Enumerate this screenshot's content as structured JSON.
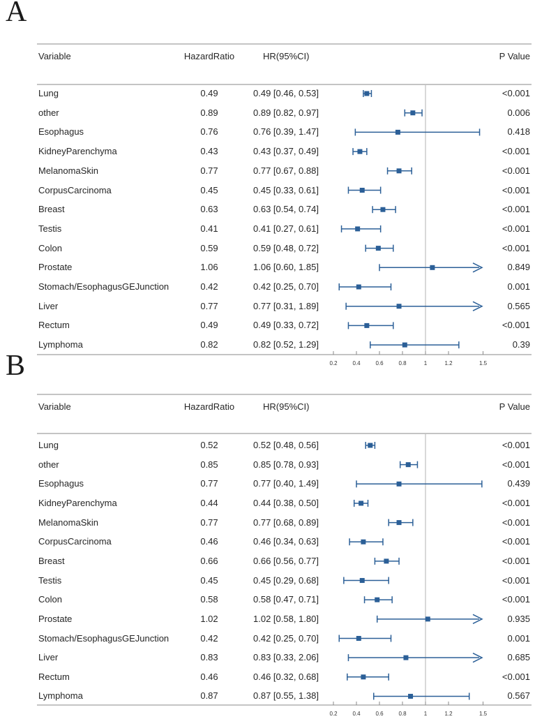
{
  "colors": {
    "marker": "#2b5f97",
    "rule": "#8a8a8a",
    "ref_line": "#b0b0b0",
    "text": "#262626",
    "tick_text": "#333333",
    "background": "#ffffff"
  },
  "chart_data": [
    {
      "type": "forest",
      "panel_label": "A",
      "columns": [
        "Variable",
        "HazardRatio",
        "HR(95%CI)",
        "P Value"
      ],
      "rows": [
        {
          "variable": "Lung",
          "hr": 0.49,
          "lower": 0.46,
          "upper": 0.53,
          "hr_label": "0.49",
          "ci_label": "0.49 [0.46, 0.53]",
          "p": "<0.001"
        },
        {
          "variable": "other",
          "hr": 0.89,
          "lower": 0.82,
          "upper": 0.97,
          "hr_label": "0.89",
          "ci_label": "0.89 [0.82, 0.97]",
          "p": "0.006"
        },
        {
          "variable": "Esophagus",
          "hr": 0.76,
          "lower": 0.39,
          "upper": 1.47,
          "hr_label": "0.76",
          "ci_label": "0.76 [0.39, 1.47]",
          "p": "0.418"
        },
        {
          "variable": "KidneyParenchyma",
          "hr": 0.43,
          "lower": 0.37,
          "upper": 0.49,
          "hr_label": "0.43",
          "ci_label": "0.43 [0.37, 0.49]",
          "p": "<0.001"
        },
        {
          "variable": "MelanomaSkin",
          "hr": 0.77,
          "lower": 0.67,
          "upper": 0.88,
          "hr_label": "0.77",
          "ci_label": "0.77 [0.67, 0.88]",
          "p": "<0.001"
        },
        {
          "variable": "CorpusCarcinoma",
          "hr": 0.45,
          "lower": 0.33,
          "upper": 0.61,
          "hr_label": "0.45",
          "ci_label": "0.45 [0.33, 0.61]",
          "p": "<0.001"
        },
        {
          "variable": "Breast",
          "hr": 0.63,
          "lower": 0.54,
          "upper": 0.74,
          "hr_label": "0.63",
          "ci_label": "0.63 [0.54, 0.74]",
          "p": "<0.001"
        },
        {
          "variable": "Testis",
          "hr": 0.41,
          "lower": 0.27,
          "upper": 0.61,
          "hr_label": "0.41",
          "ci_label": "0.41 [0.27, 0.61]",
          "p": "<0.001"
        },
        {
          "variable": "Colon",
          "hr": 0.59,
          "lower": 0.48,
          "upper": 0.72,
          "hr_label": "0.59",
          "ci_label": "0.59 [0.48, 0.72]",
          "p": "<0.001"
        },
        {
          "variable": "Prostate",
          "hr": 1.06,
          "lower": 0.6,
          "upper": 1.85,
          "hr_label": "1.06",
          "ci_label": "1.06 [0.60, 1.85]",
          "p": "0.849"
        },
        {
          "variable": "Stomach/EsophagusGEJunction",
          "hr": 0.42,
          "lower": 0.25,
          "upper": 0.7,
          "hr_label": "0.42",
          "ci_label": "0.42 [0.25, 0.70]",
          "p": "0.001"
        },
        {
          "variable": "Liver",
          "hr": 0.77,
          "lower": 0.31,
          "upper": 1.89,
          "hr_label": "0.77",
          "ci_label": "0.77 [0.31, 1.89]",
          "p": "0.565"
        },
        {
          "variable": "Rectum",
          "hr": 0.49,
          "lower": 0.33,
          "upper": 0.72,
          "hr_label": "0.49",
          "ci_label": "0.49 [0.33, 0.72]",
          "p": "<0.001"
        },
        {
          "variable": "Lymphoma",
          "hr": 0.82,
          "lower": 0.52,
          "upper": 1.29,
          "hr_label": "0.82",
          "ci_label": "0.82 [0.52, 1.29]",
          "p": "0.39"
        }
      ],
      "x_ticks": [
        0.2,
        0.4,
        0.6,
        0.8,
        1,
        1.2,
        1.5
      ],
      "x_tick_labels": [
        "0.2",
        "0.4",
        "0.6",
        "0.8",
        "1",
        "1.2",
        "1.5"
      ],
      "ref_line": 1,
      "clip_upper": 1.5,
      "xlim": [
        0.1,
        1.6
      ],
      "grid": false,
      "legend": false
    },
    {
      "type": "forest",
      "panel_label": "B",
      "columns": [
        "Variable",
        "HazardRatio",
        "HR(95%CI)",
        "P Value"
      ],
      "rows": [
        {
          "variable": "Lung",
          "hr": 0.52,
          "lower": 0.48,
          "upper": 0.56,
          "hr_label": "0.52",
          "ci_label": "0.52 [0.48, 0.56]",
          "p": "<0.001"
        },
        {
          "variable": "other",
          "hr": 0.85,
          "lower": 0.78,
          "upper": 0.93,
          "hr_label": "0.85",
          "ci_label": "0.85 [0.78, 0.93]",
          "p": "<0.001"
        },
        {
          "variable": "Esophagus",
          "hr": 0.77,
          "lower": 0.4,
          "upper": 1.49,
          "hr_label": "0.77",
          "ci_label": "0.77 [0.40, 1.49]",
          "p": "0.439"
        },
        {
          "variable": "KidneyParenchyma",
          "hr": 0.44,
          "lower": 0.38,
          "upper": 0.5,
          "hr_label": "0.44",
          "ci_label": "0.44 [0.38, 0.50]",
          "p": "<0.001"
        },
        {
          "variable": "MelanomaSkin",
          "hr": 0.77,
          "lower": 0.68,
          "upper": 0.89,
          "hr_label": "0.77",
          "ci_label": "0.77 [0.68, 0.89]",
          "p": "<0.001"
        },
        {
          "variable": "CorpusCarcinoma",
          "hr": 0.46,
          "lower": 0.34,
          "upper": 0.63,
          "hr_label": "0.46",
          "ci_label": "0.46 [0.34, 0.63]",
          "p": "<0.001"
        },
        {
          "variable": "Breast",
          "hr": 0.66,
          "lower": 0.56,
          "upper": 0.77,
          "hr_label": "0.66",
          "ci_label": "0.66 [0.56, 0.77]",
          "p": "<0.001"
        },
        {
          "variable": "Testis",
          "hr": 0.45,
          "lower": 0.29,
          "upper": 0.68,
          "hr_label": "0.45",
          "ci_label": "0.45 [0.29, 0.68]",
          "p": "<0.001"
        },
        {
          "variable": "Colon",
          "hr": 0.58,
          "lower": 0.47,
          "upper": 0.71,
          "hr_label": "0.58",
          "ci_label": "0.58 [0.47, 0.71]",
          "p": "<0.001"
        },
        {
          "variable": "Prostate",
          "hr": 1.02,
          "lower": 0.58,
          "upper": 1.8,
          "hr_label": "1.02",
          "ci_label": "1.02 [0.58, 1.80]",
          "p": "0.935"
        },
        {
          "variable": "Stomach/EsophagusGEJunction",
          "hr": 0.42,
          "lower": 0.25,
          "upper": 0.7,
          "hr_label": "0.42",
          "ci_label": "0.42 [0.25, 0.70]",
          "p": "0.001"
        },
        {
          "variable": "Liver",
          "hr": 0.83,
          "lower": 0.33,
          "upper": 2.06,
          "hr_label": "0.83",
          "ci_label": "0.83 [0.33, 2.06]",
          "p": "0.685"
        },
        {
          "variable": "Rectum",
          "hr": 0.46,
          "lower": 0.32,
          "upper": 0.68,
          "hr_label": "0.46",
          "ci_label": "0.46 [0.32, 0.68]",
          "p": "<0.001"
        },
        {
          "variable": "Lymphoma",
          "hr": 0.87,
          "lower": 0.55,
          "upper": 1.38,
          "hr_label": "0.87",
          "ci_label": "0.87 [0.55, 1.38]",
          "p": "0.567"
        }
      ],
      "x_ticks": [
        0.2,
        0.4,
        0.6,
        0.8,
        1,
        1.2,
        1.5
      ],
      "x_tick_labels": [
        "0.2",
        "0.4",
        "0.6",
        "0.8",
        "1",
        "1.2",
        "1.5"
      ],
      "ref_line": 1,
      "clip_upper": 1.5,
      "xlim": [
        0.1,
        1.6
      ],
      "grid": false,
      "legend": false
    }
  ]
}
